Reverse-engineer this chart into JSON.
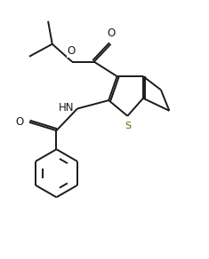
{
  "bg_color": "#ffffff",
  "line_color": "#1a1a1a",
  "S_color": "#7a5c00",
  "line_width": 1.4,
  "fig_width": 2.35,
  "fig_height": 2.92,
  "dpi": 100,
  "xlim": [
    0,
    10
  ],
  "ylim": [
    0,
    12.4
  ]
}
